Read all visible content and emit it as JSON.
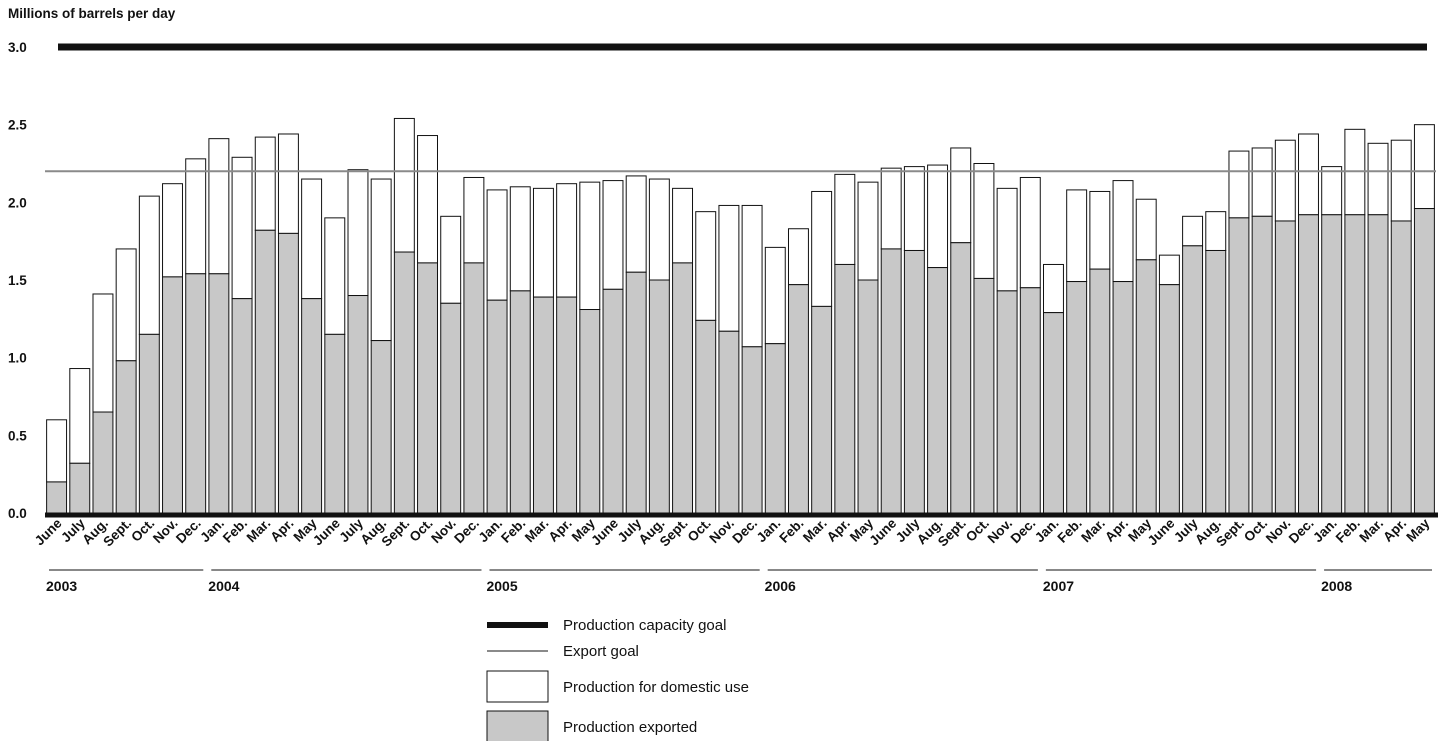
{
  "chart_data": {
    "type": "bar",
    "stacked": true,
    "ylabel": "Millions of barrels per day",
    "ylim": [
      0,
      3.0
    ],
    "yticks": [
      "0.0",
      "0.5",
      "1.0",
      "1.5",
      "2.0",
      "2.5",
      "3.0"
    ],
    "grid": false,
    "legend_position": "bottom-center",
    "categories": [
      "June",
      "July",
      "Aug.",
      "Sept.",
      "Oct.",
      "Nov.",
      "Dec.",
      "Jan.",
      "Feb.",
      "Mar.",
      "Apr.",
      "May",
      "June",
      "July",
      "Aug.",
      "Sept.",
      "Oct.",
      "Nov.",
      "Dec.",
      "Jan.",
      "Feb.",
      "Mar.",
      "Apr.",
      "May",
      "June",
      "July",
      "Aug.",
      "Sept.",
      "Oct.",
      "Nov.",
      "Dec.",
      "Jan.",
      "Feb.",
      "Mar.",
      "Apr.",
      "May",
      "June",
      "July",
      "Aug.",
      "Sept.",
      "Oct.",
      "Nov.",
      "Dec.",
      "Jan.",
      "Feb.",
      "Mar.",
      "Apr.",
      "May",
      "June",
      "July",
      "Aug.",
      "Sept.",
      "Oct.",
      "Nov.",
      "Dec.",
      "Jan.",
      "Feb.",
      "Mar.",
      "Apr.",
      "May"
    ],
    "year_groups": [
      {
        "label": "2003",
        "start": 0,
        "count": 7
      },
      {
        "label": "2004",
        "start": 7,
        "count": 12
      },
      {
        "label": "2005",
        "start": 19,
        "count": 12
      },
      {
        "label": "2006",
        "start": 31,
        "count": 12
      },
      {
        "label": "2007",
        "start": 43,
        "count": 12
      },
      {
        "label": "2008",
        "start": 55,
        "count": 5
      }
    ],
    "series": [
      {
        "name": "Production exported",
        "color": "#c8c8c8",
        "values": [
          0.2,
          0.32,
          0.65,
          0.98,
          1.15,
          1.52,
          1.54,
          1.54,
          1.38,
          1.82,
          1.8,
          1.38,
          1.15,
          1.4,
          1.11,
          1.68,
          1.61,
          1.35,
          1.61,
          1.37,
          1.43,
          1.39,
          1.39,
          1.31,
          1.44,
          1.55,
          1.5,
          1.61,
          1.24,
          1.17,
          1.07,
          1.09,
          1.47,
          1.33,
          1.6,
          1.5,
          1.7,
          1.69,
          1.58,
          1.74,
          1.51,
          1.43,
          1.45,
          1.29,
          1.49,
          1.57,
          1.49,
          1.63,
          1.47,
          1.72,
          1.69,
          1.9,
          1.91,
          1.88,
          1.92,
          1.92,
          1.92,
          1.92,
          1.88,
          1.96
        ]
      },
      {
        "name": "Production for domestic use",
        "color": "#ffffff",
        "values": [
          0.4,
          0.61,
          0.76,
          0.72,
          0.89,
          0.6,
          0.74,
          0.87,
          0.91,
          0.6,
          0.64,
          0.77,
          0.75,
          0.81,
          1.04,
          0.86,
          0.82,
          0.56,
          0.55,
          0.71,
          0.67,
          0.7,
          0.73,
          0.82,
          0.7,
          0.62,
          0.65,
          0.48,
          0.7,
          0.81,
          0.91,
          0.62,
          0.36,
          0.74,
          0.58,
          0.63,
          0.52,
          0.54,
          0.66,
          0.61,
          0.74,
          0.66,
          0.71,
          0.31,
          0.59,
          0.5,
          0.65,
          0.39,
          0.19,
          0.19,
          0.25,
          0.43,
          0.44,
          0.52,
          0.52,
          0.31,
          0.55,
          0.46,
          0.52,
          0.54
        ]
      }
    ],
    "reference_lines": [
      {
        "name": "Production capacity goal",
        "value": 3.0,
        "color": "#111111",
        "style": "thick"
      },
      {
        "name": "Export goal",
        "value": 2.2,
        "color": "#8a8a8a",
        "style": "thin"
      }
    ],
    "legend": [
      {
        "label": "Production capacity goal",
        "kind": "thick-line"
      },
      {
        "label": "Export goal",
        "kind": "thin-line"
      },
      {
        "label": "Production for domestic use",
        "kind": "box-white"
      },
      {
        "label": "Production exported",
        "kind": "box-gray"
      }
    ]
  }
}
